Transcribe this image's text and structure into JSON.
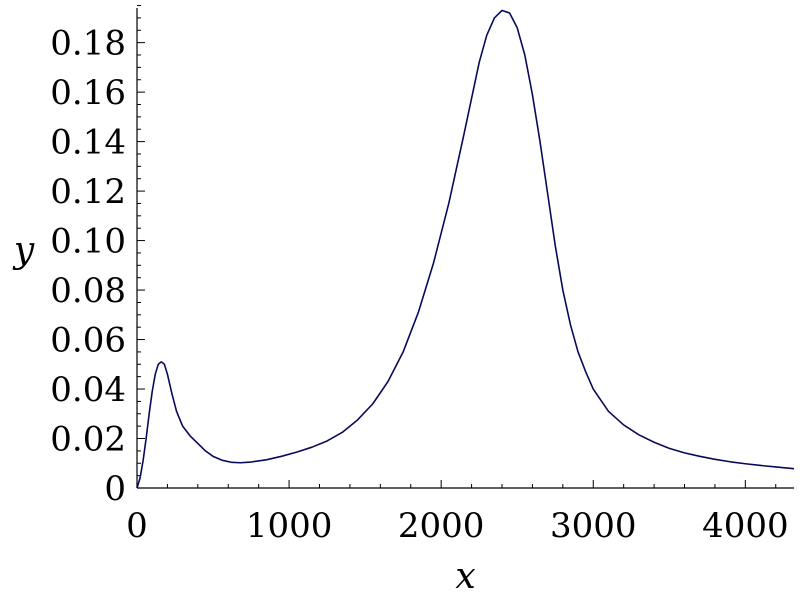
{
  "chart_data": {
    "type": "line",
    "title": "",
    "xlabel": "x",
    "ylabel": "y",
    "xlim": [
      0,
      4320
    ],
    "ylim": [
      0,
      0.194
    ],
    "grid": false,
    "legend": "none",
    "x_ticks": [
      0,
      1000,
      2000,
      3000,
      4000
    ],
    "x_tick_labels": [
      "0",
      "1000",
      "2000",
      "3000",
      "4000"
    ],
    "x_minor_step": 200,
    "y_ticks": [
      0,
      0.02,
      0.04,
      0.06,
      0.08,
      0.1,
      0.12,
      0.14,
      0.16,
      0.18
    ],
    "y_tick_labels": [
      "0",
      "0.02",
      "0.04",
      "0.06",
      "0.08",
      "0.10",
      "0.12",
      "0.14",
      "0.16",
      "0.18"
    ],
    "y_minor_step": 0.005,
    "series": [
      {
        "color": "#0a0a5a",
        "x": [
          0,
          20,
          40,
          60,
          80,
          100,
          120,
          140,
          160,
          180,
          200,
          230,
          260,
          300,
          350,
          400,
          450,
          500,
          560,
          620,
          680,
          750,
          850,
          950,
          1050,
          1150,
          1250,
          1350,
          1450,
          1550,
          1650,
          1750,
          1850,
          1950,
          2050,
          2150,
          2250,
          2300,
          2350,
          2400,
          2450,
          2500,
          2550,
          2600,
          2650,
          2700,
          2750,
          2800,
          2850,
          2900,
          2950,
          3000,
          3100,
          3200,
          3300,
          3400,
          3500,
          3600,
          3700,
          3800,
          3900,
          4000,
          4100,
          4200,
          4320
        ],
        "y": [
          0,
          0.004,
          0.011,
          0.02,
          0.03,
          0.039,
          0.046,
          0.05,
          0.051,
          0.05,
          0.046,
          0.038,
          0.031,
          0.025,
          0.021,
          0.018,
          0.015,
          0.0128,
          0.0112,
          0.0104,
          0.0102,
          0.0105,
          0.0114,
          0.0128,
          0.0145,
          0.0165,
          0.019,
          0.0225,
          0.0275,
          0.034,
          0.043,
          0.055,
          0.071,
          0.091,
          0.115,
          0.143,
          0.172,
          0.183,
          0.19,
          0.193,
          0.192,
          0.186,
          0.175,
          0.159,
          0.14,
          0.119,
          0.098,
          0.08,
          0.066,
          0.055,
          0.047,
          0.04,
          0.031,
          0.0255,
          0.0215,
          0.0185,
          0.016,
          0.0142,
          0.0128,
          0.0116,
          0.0106,
          0.0098,
          0.0091,
          0.0085,
          0.0078
        ]
      }
    ]
  }
}
